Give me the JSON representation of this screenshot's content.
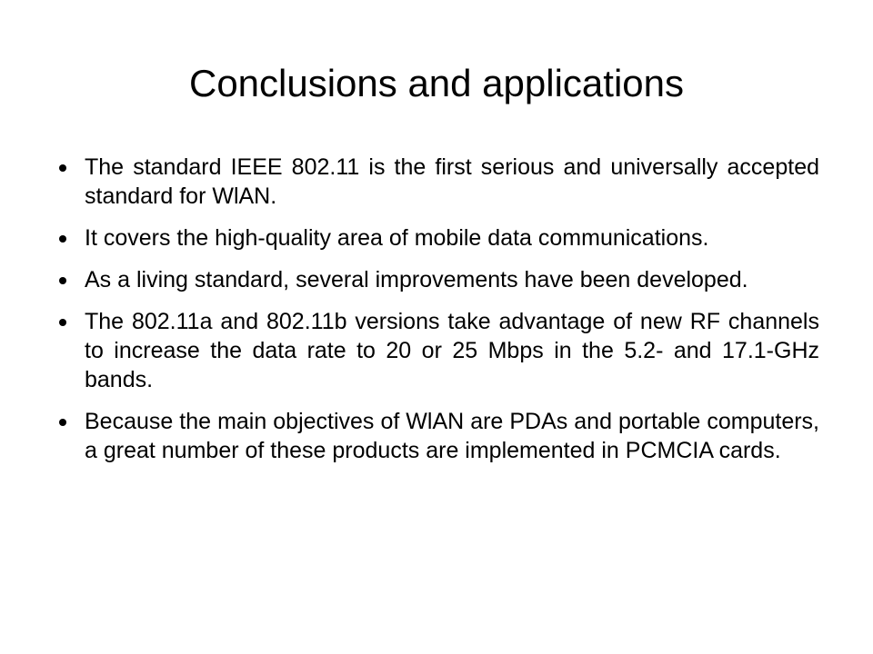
{
  "title": "Conclusions and applications",
  "bullets": [
    "The standard IEEE 802.11 is the first serious and universally accepted standard for WlAN.",
    "It covers the high-quality area of mobile data communications.",
    "As a living standard, several improvements have been developed.",
    "The 802.11a and 802.11b versions take advantage of new RF channels to increase the data rate to 20 or 25 Mbps in the 5.2- and 17.1-GHz bands.",
    "Because the main objectives of WlAN are PDAs and portable computers, a great number of these products are implemented in PCMCIA cards."
  ]
}
